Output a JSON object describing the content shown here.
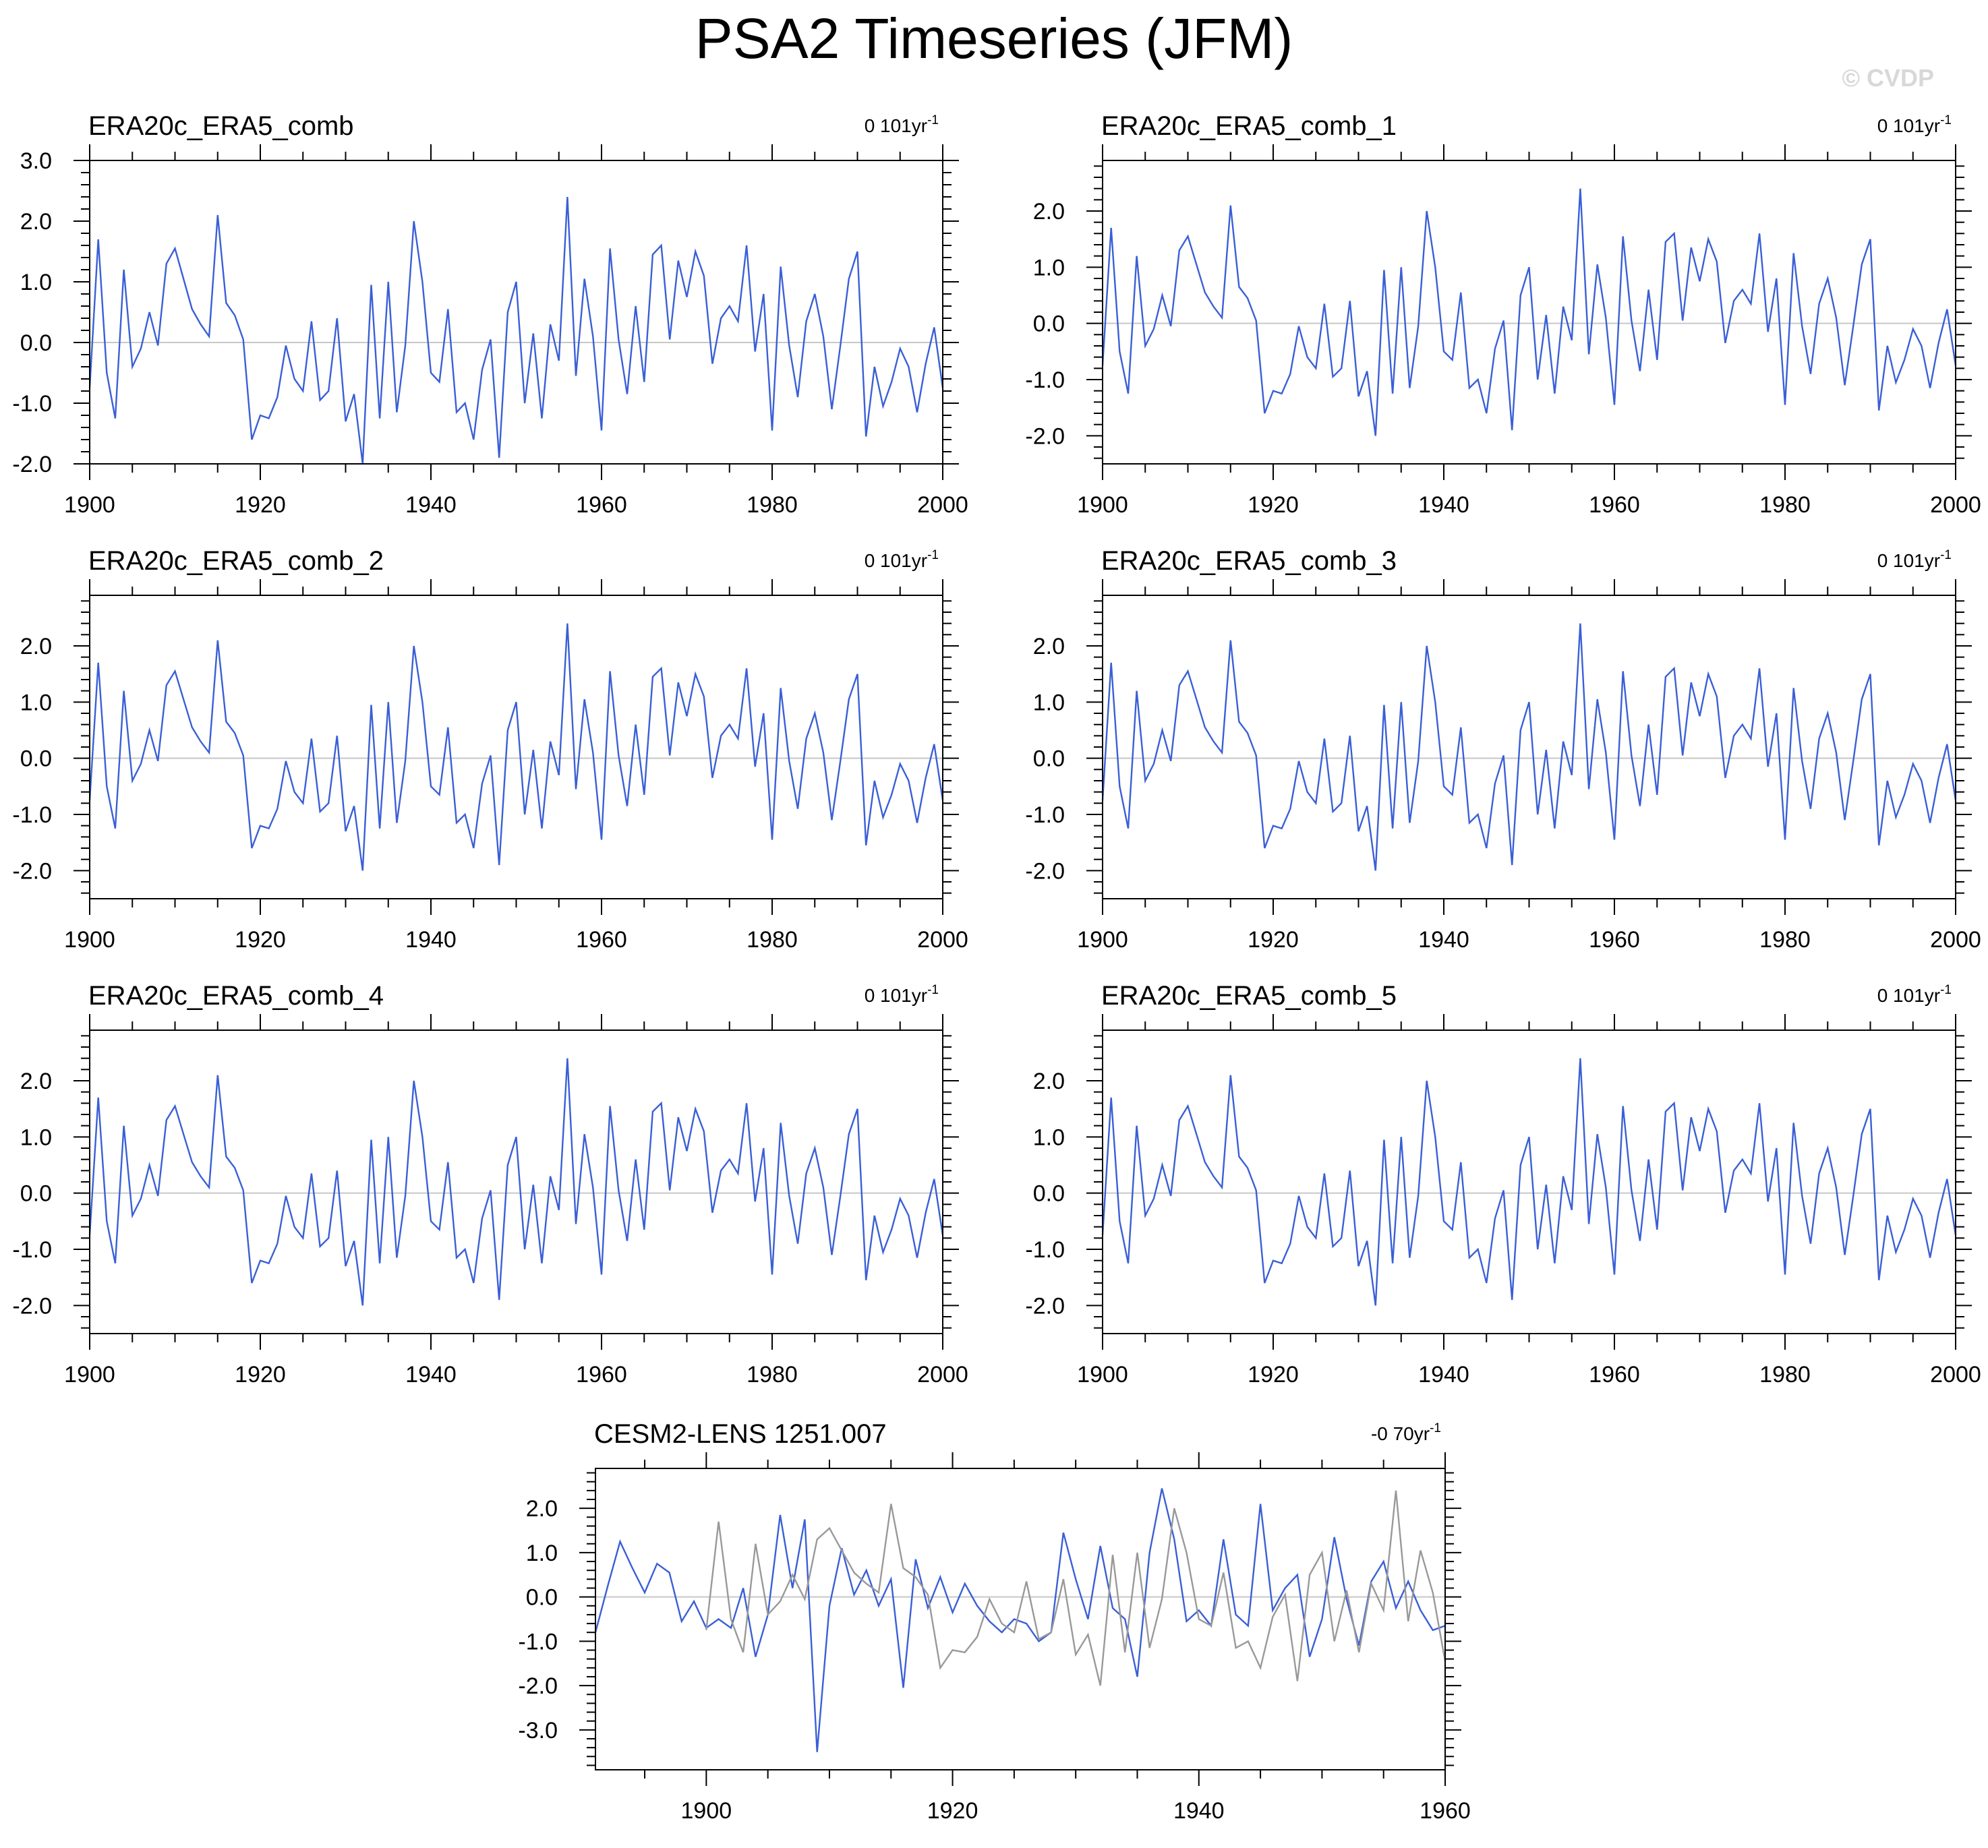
{
  "title": "PSA2 Timeseries (JFM)",
  "watermark": "© CVDP",
  "colors": {
    "series": "#3a5fd6",
    "reference": "#999999",
    "zero_line": "#c8c8c8",
    "frame": "#000000"
  },
  "chart_data": [
    {
      "type": "line",
      "title": "ERA20c_ERA5_comb",
      "trend_label": "0 101yr",
      "trend_superscript": "-1",
      "xlim": [
        1900,
        2000
      ],
      "ylim": [
        -2.0,
        3.0
      ],
      "xticks": [
        1900,
        1920,
        1940,
        1960,
        1980,
        2000
      ],
      "yticks": [
        "3.0",
        "2.0",
        "1.0",
        "0.0",
        "-1.0",
        "-2.0"
      ],
      "ytick_values": [
        3,
        2,
        1,
        0,
        -1,
        -2
      ],
      "x_start": 1900,
      "series": [
        {
          "values": [
            -0.75,
            1.7,
            -0.5,
            -1.25,
            1.2,
            -0.4,
            -0.1,
            0.5,
            -0.05,
            1.3,
            1.55,
            1.05,
            0.55,
            0.3,
            0.1,
            2.1,
            0.65,
            0.45,
            0.05,
            -1.6,
            -1.2,
            -1.25,
            -0.9,
            -0.05,
            -0.6,
            -0.8,
            0.35,
            -0.95,
            -0.8,
            0.4,
            -1.3,
            -0.85,
            -2.0,
            0.95,
            -1.25,
            1.0,
            -1.15,
            -0.05,
            2.0,
            1.0,
            -0.5,
            -0.65,
            0.55,
            -1.15,
            -1.0,
            -1.6,
            -0.45,
            0.05,
            -1.9,
            0.5,
            1.0,
            -1.0,
            0.15,
            -1.25,
            0.3,
            -0.3,
            2.4,
            -0.55,
            1.05,
            0.1,
            -1.45,
            1.55,
            0.05,
            -0.85,
            0.6,
            -0.65,
            1.45,
            1.6,
            0.05,
            1.35,
            0.75,
            1.5,
            1.1,
            -0.35,
            0.4,
            0.6,
            0.35,
            1.6,
            -0.15,
            0.8,
            -1.45,
            1.25,
            -0.05,
            -0.9,
            0.35,
            0.8,
            0.1,
            -1.1,
            -0.05,
            1.05,
            1.5,
            -1.55,
            -0.4,
            -1.05,
            -0.65,
            -0.1,
            -0.4,
            -1.15,
            -0.35,
            0.25,
            -0.75
          ]
        }
      ]
    },
    {
      "type": "line",
      "title": "ERA20c_ERA5_comb_1",
      "trend_label": "0 101yr",
      "trend_superscript": "-1",
      "xlim": [
        1900,
        2000
      ],
      "ylim": [
        -2.5,
        2.9
      ],
      "xticks": [
        1900,
        1920,
        1940,
        1960,
        1980,
        2000
      ],
      "yticks": [
        "2.0",
        "1.0",
        "0.0",
        "-1.0",
        "-2.0"
      ],
      "ytick_values": [
        2,
        1,
        0,
        -1,
        -2
      ],
      "x_start": 1900,
      "series": [
        {
          "values": [
            -0.75,
            1.7,
            -0.5,
            -1.25,
            1.2,
            -0.4,
            -0.1,
            0.5,
            -0.05,
            1.3,
            1.55,
            1.05,
            0.55,
            0.3,
            0.1,
            2.1,
            0.65,
            0.45,
            0.05,
            -1.6,
            -1.2,
            -1.25,
            -0.9,
            -0.05,
            -0.6,
            -0.8,
            0.35,
            -0.95,
            -0.8,
            0.4,
            -1.3,
            -0.85,
            -2.0,
            0.95,
            -1.25,
            1.0,
            -1.15,
            -0.05,
            2.0,
            1.0,
            -0.5,
            -0.65,
            0.55,
            -1.15,
            -1.0,
            -1.6,
            -0.45,
            0.05,
            -1.9,
            0.5,
            1.0,
            -1.0,
            0.15,
            -1.25,
            0.3,
            -0.3,
            2.4,
            -0.55,
            1.05,
            0.1,
            -1.45,
            1.55,
            0.05,
            -0.85,
            0.6,
            -0.65,
            1.45,
            1.6,
            0.05,
            1.35,
            0.75,
            1.5,
            1.1,
            -0.35,
            0.4,
            0.6,
            0.35,
            1.6,
            -0.15,
            0.8,
            -1.45,
            1.25,
            -0.05,
            -0.9,
            0.35,
            0.8,
            0.1,
            -1.1,
            -0.05,
            1.05,
            1.5,
            -1.55,
            -0.4,
            -1.05,
            -0.65,
            -0.1,
            -0.4,
            -1.15,
            -0.35,
            0.25,
            -0.75
          ]
        }
      ]
    },
    {
      "type": "line",
      "title": "ERA20c_ERA5_comb_2",
      "trend_label": "0 101yr",
      "trend_superscript": "-1",
      "xlim": [
        1900,
        2000
      ],
      "ylim": [
        -2.5,
        2.9
      ],
      "xticks": [
        1900,
        1920,
        1940,
        1960,
        1980,
        2000
      ],
      "yticks": [
        "2.0",
        "1.0",
        "0.0",
        "-1.0",
        "-2.0"
      ],
      "ytick_values": [
        2,
        1,
        0,
        -1,
        -2
      ],
      "x_start": 1900,
      "series": [
        {
          "values": [
            -0.75,
            1.7,
            -0.5,
            -1.25,
            1.2,
            -0.4,
            -0.1,
            0.5,
            -0.05,
            1.3,
            1.55,
            1.05,
            0.55,
            0.3,
            0.1,
            2.1,
            0.65,
            0.45,
            0.05,
            -1.6,
            -1.2,
            -1.25,
            -0.9,
            -0.05,
            -0.6,
            -0.8,
            0.35,
            -0.95,
            -0.8,
            0.4,
            -1.3,
            -0.85,
            -2.0,
            0.95,
            -1.25,
            1.0,
            -1.15,
            -0.05,
            2.0,
            1.0,
            -0.5,
            -0.65,
            0.55,
            -1.15,
            -1.0,
            -1.6,
            -0.45,
            0.05,
            -1.9,
            0.5,
            1.0,
            -1.0,
            0.15,
            -1.25,
            0.3,
            -0.3,
            2.4,
            -0.55,
            1.05,
            0.1,
            -1.45,
            1.55,
            0.05,
            -0.85,
            0.6,
            -0.65,
            1.45,
            1.6,
            0.05,
            1.35,
            0.75,
            1.5,
            1.1,
            -0.35,
            0.4,
            0.6,
            0.35,
            1.6,
            -0.15,
            0.8,
            -1.45,
            1.25,
            -0.05,
            -0.9,
            0.35,
            0.8,
            0.1,
            -1.1,
            -0.05,
            1.05,
            1.5,
            -1.55,
            -0.4,
            -1.05,
            -0.65,
            -0.1,
            -0.4,
            -1.15,
            -0.35,
            0.25,
            -0.75
          ]
        }
      ]
    },
    {
      "type": "line",
      "title": "ERA20c_ERA5_comb_3",
      "trend_label": "0 101yr",
      "trend_superscript": "-1",
      "xlim": [
        1900,
        2000
      ],
      "ylim": [
        -2.5,
        2.9
      ],
      "xticks": [
        1900,
        1920,
        1940,
        1960,
        1980,
        2000
      ],
      "yticks": [
        "2.0",
        "1.0",
        "0.0",
        "-1.0",
        "-2.0"
      ],
      "ytick_values": [
        2,
        1,
        0,
        -1,
        -2
      ],
      "x_start": 1900,
      "series": [
        {
          "values": [
            -0.75,
            1.7,
            -0.5,
            -1.25,
            1.2,
            -0.4,
            -0.1,
            0.5,
            -0.05,
            1.3,
            1.55,
            1.05,
            0.55,
            0.3,
            0.1,
            2.1,
            0.65,
            0.45,
            0.05,
            -1.6,
            -1.2,
            -1.25,
            -0.9,
            -0.05,
            -0.6,
            -0.8,
            0.35,
            -0.95,
            -0.8,
            0.4,
            -1.3,
            -0.85,
            -2.0,
            0.95,
            -1.25,
            1.0,
            -1.15,
            -0.05,
            2.0,
            1.0,
            -0.5,
            -0.65,
            0.55,
            -1.15,
            -1.0,
            -1.6,
            -0.45,
            0.05,
            -1.9,
            0.5,
            1.0,
            -1.0,
            0.15,
            -1.25,
            0.3,
            -0.3,
            2.4,
            -0.55,
            1.05,
            0.1,
            -1.45,
            1.55,
            0.05,
            -0.85,
            0.6,
            -0.65,
            1.45,
            1.6,
            0.05,
            1.35,
            0.75,
            1.5,
            1.1,
            -0.35,
            0.4,
            0.6,
            0.35,
            1.6,
            -0.15,
            0.8,
            -1.45,
            1.25,
            -0.05,
            -0.9,
            0.35,
            0.8,
            0.1,
            -1.1,
            -0.05,
            1.05,
            1.5,
            -1.55,
            -0.4,
            -1.05,
            -0.65,
            -0.1,
            -0.4,
            -1.15,
            -0.35,
            0.25,
            -0.75
          ]
        }
      ]
    },
    {
      "type": "line",
      "title": "ERA20c_ERA5_comb_4",
      "trend_label": "0 101yr",
      "trend_superscript": "-1",
      "xlim": [
        1900,
        2000
      ],
      "ylim": [
        -2.5,
        2.9
      ],
      "xticks": [
        1900,
        1920,
        1940,
        1960,
        1980,
        2000
      ],
      "yticks": [
        "2.0",
        "1.0",
        "0.0",
        "-1.0",
        "-2.0"
      ],
      "ytick_values": [
        2,
        1,
        0,
        -1,
        -2
      ],
      "x_start": 1900,
      "series": [
        {
          "values": [
            -0.75,
            1.7,
            -0.5,
            -1.25,
            1.2,
            -0.4,
            -0.1,
            0.5,
            -0.05,
            1.3,
            1.55,
            1.05,
            0.55,
            0.3,
            0.1,
            2.1,
            0.65,
            0.45,
            0.05,
            -1.6,
            -1.2,
            -1.25,
            -0.9,
            -0.05,
            -0.6,
            -0.8,
            0.35,
            -0.95,
            -0.8,
            0.4,
            -1.3,
            -0.85,
            -2.0,
            0.95,
            -1.25,
            1.0,
            -1.15,
            -0.05,
            2.0,
            1.0,
            -0.5,
            -0.65,
            0.55,
            -1.15,
            -1.0,
            -1.6,
            -0.45,
            0.05,
            -1.9,
            0.5,
            1.0,
            -1.0,
            0.15,
            -1.25,
            0.3,
            -0.3,
            2.4,
            -0.55,
            1.05,
            0.1,
            -1.45,
            1.55,
            0.05,
            -0.85,
            0.6,
            -0.65,
            1.45,
            1.6,
            0.05,
            1.35,
            0.75,
            1.5,
            1.1,
            -0.35,
            0.4,
            0.6,
            0.35,
            1.6,
            -0.15,
            0.8,
            -1.45,
            1.25,
            -0.05,
            -0.9,
            0.35,
            0.8,
            0.1,
            -1.1,
            -0.05,
            1.05,
            1.5,
            -1.55,
            -0.4,
            -1.05,
            -0.65,
            -0.1,
            -0.4,
            -1.15,
            -0.35,
            0.25,
            -0.75
          ]
        }
      ]
    },
    {
      "type": "line",
      "title": "ERA20c_ERA5_comb_5",
      "trend_label": "0 101yr",
      "trend_superscript": "-1",
      "xlim": [
        1900,
        2000
      ],
      "ylim": [
        -2.5,
        2.9
      ],
      "xticks": [
        1900,
        1920,
        1940,
        1960,
        1980,
        2000
      ],
      "yticks": [
        "2.0",
        "1.0",
        "0.0",
        "-1.0",
        "-2.0"
      ],
      "ytick_values": [
        2,
        1,
        0,
        -1,
        -2
      ],
      "x_start": 1900,
      "series": [
        {
          "values": [
            -0.75,
            1.7,
            -0.5,
            -1.25,
            1.2,
            -0.4,
            -0.1,
            0.5,
            -0.05,
            1.3,
            1.55,
            1.05,
            0.55,
            0.3,
            0.1,
            2.1,
            0.65,
            0.45,
            0.05,
            -1.6,
            -1.2,
            -1.25,
            -0.9,
            -0.05,
            -0.6,
            -0.8,
            0.35,
            -0.95,
            -0.8,
            0.4,
            -1.3,
            -0.85,
            -2.0,
            0.95,
            -1.25,
            1.0,
            -1.15,
            -0.05,
            2.0,
            1.0,
            -0.5,
            -0.65,
            0.55,
            -1.15,
            -1.0,
            -1.6,
            -0.45,
            0.05,
            -1.9,
            0.5,
            1.0,
            -1.0,
            0.15,
            -1.25,
            0.3,
            -0.3,
            2.4,
            -0.55,
            1.05,
            0.1,
            -1.45,
            1.55,
            0.05,
            -0.85,
            0.6,
            -0.65,
            1.45,
            1.6,
            0.05,
            1.35,
            0.75,
            1.5,
            1.1,
            -0.35,
            0.4,
            0.6,
            0.35,
            1.6,
            -0.15,
            0.8,
            -1.45,
            1.25,
            -0.05,
            -0.9,
            0.35,
            0.8,
            0.1,
            -1.1,
            -0.05,
            1.05,
            1.5,
            -1.55,
            -0.4,
            -1.05,
            -0.65,
            -0.1,
            -0.4,
            -1.15,
            -0.35,
            0.25,
            -0.75
          ]
        }
      ]
    },
    {
      "type": "line",
      "title": "CESM2-LENS 1251.007",
      "trend_label": "-0 70yr",
      "trend_superscript": "-1",
      "xlim": [
        1891,
        1960
      ],
      "ylim": [
        -3.9,
        2.9
      ],
      "xticks": [
        1900,
        1920,
        1940,
        1960
      ],
      "yticks": [
        "2.0",
        "1.0",
        "0.0",
        "-1.0",
        "-2.0",
        "-3.0"
      ],
      "ytick_values": [
        2,
        1,
        0,
        -1,
        -2,
        -3
      ],
      "x_start": 1891,
      "series": [
        {
          "values": [
            -0.8,
            0.25,
            1.25,
            0.65,
            0.1,
            0.75,
            0.55,
            -0.55,
            -0.1,
            -0.7,
            -0.5,
            -0.7,
            0.2,
            -1.35,
            -0.4,
            1.85,
            0.2,
            1.75,
            -3.5,
            -0.2,
            1.1,
            0.05,
            0.6,
            -0.2,
            0.4,
            -2.05,
            0.85,
            -0.25,
            0.45,
            -0.35,
            0.3,
            -0.2,
            -0.55,
            -0.8,
            -0.5,
            -0.6,
            -1.0,
            -0.8,
            1.45,
            0.4,
            -0.5,
            1.15,
            -0.25,
            -0.5,
            -1.8,
            1.0,
            2.45,
            1.3,
            -0.55,
            -0.3,
            -0.65,
            1.3,
            -0.4,
            -0.65,
            2.1,
            -0.3,
            0.2,
            0.5,
            -1.35,
            -0.5,
            1.35,
            -0.05,
            -1.1,
            0.35,
            0.8,
            -0.25,
            0.35,
            -0.3,
            -0.75,
            -0.65
          ]
        },
        {
          "x_start": 1900,
          "values": [
            -0.75,
            1.7,
            -0.5,
            -1.25,
            1.2,
            -0.4,
            -0.1,
            0.5,
            -0.05,
            1.3,
            1.55,
            1.05,
            0.55,
            0.3,
            0.1,
            2.1,
            0.65,
            0.45,
            0.05,
            -1.6,
            -1.2,
            -1.25,
            -0.9,
            -0.05,
            -0.6,
            -0.8,
            0.35,
            -0.95,
            -0.8,
            0.4,
            -1.3,
            -0.85,
            -2.0,
            0.95,
            -1.25,
            1.0,
            -1.15,
            -0.05,
            2.0,
            1.0,
            -0.5,
            -0.65,
            0.55,
            -1.15,
            -1.0,
            -1.6,
            -0.45,
            0.05,
            -1.9,
            0.5,
            1.0,
            -1.0,
            0.15,
            -1.25,
            0.3,
            -0.3,
            2.4,
            -0.55,
            1.05,
            0.1,
            -1.45
          ]
        }
      ]
    }
  ]
}
